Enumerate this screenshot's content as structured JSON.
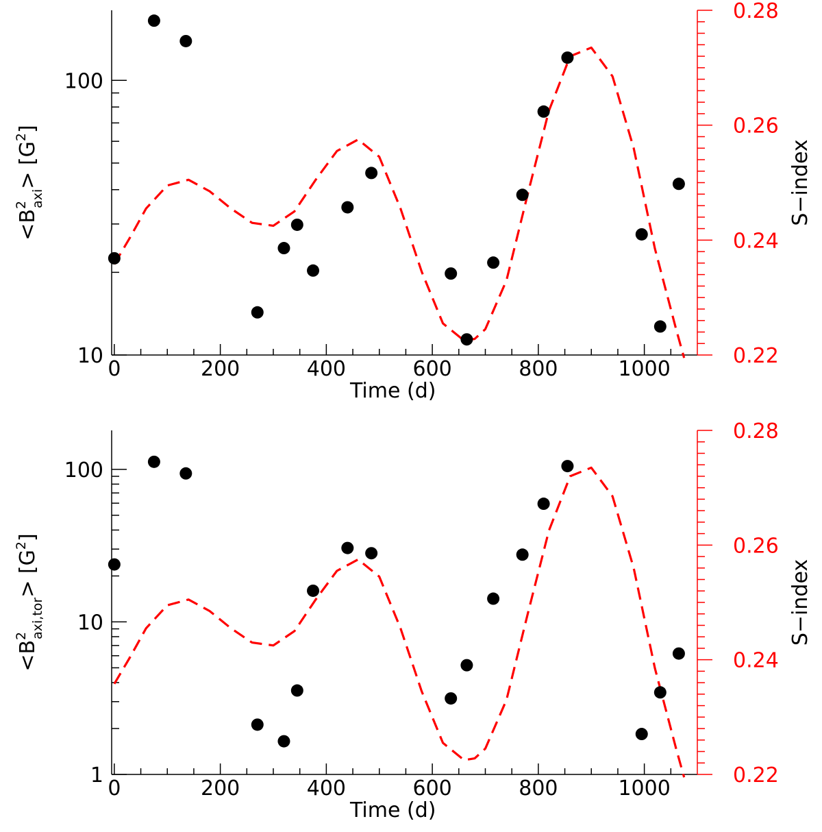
{
  "colors": {
    "points": "#000000",
    "sindex_curve": "#ff0000",
    "left_axis": "#000000",
    "right_axis": "#ff0000"
  },
  "chart_data": [
    {
      "type": "scatter",
      "panel": "top",
      "xlabel": "Time (d)",
      "ylabel": {
        "pre": "<B",
        "sup": "2",
        "sub": "axi",
        "post": "> [G",
        "sup2": "2",
        "post2": "]"
      },
      "y2label": "S−index",
      "xlim": [
        -5,
        1100
      ],
      "ylim": [
        10,
        180
      ],
      "yscale": "log",
      "y2lim": [
        0.22,
        0.28
      ],
      "x_major_ticks": [
        0,
        200,
        400,
        600,
        800,
        1000
      ],
      "x_tick_labels": [
        "0",
        "200",
        "400",
        "600",
        "800",
        "1000"
      ],
      "x_minor_ticks": [
        50,
        100,
        150,
        250,
        300,
        350,
        450,
        500,
        550,
        650,
        700,
        750,
        850,
        900,
        950,
        1050
      ],
      "y_major_ticks": [
        10,
        100
      ],
      "y_tick_labels": [
        "10",
        "100"
      ],
      "y_minor_ticks": [
        20,
        30,
        40,
        50,
        60,
        70,
        80,
        90
      ],
      "y2_major_ticks": [
        0.22,
        0.24,
        0.26,
        0.28
      ],
      "y2_tick_labels": [
        "0.22",
        "0.24",
        "0.26",
        "0.28"
      ],
      "y2_minor_step": 0.002,
      "series": [
        {
          "name": "<B²axi>",
          "kind": "points",
          "x": [
            0,
            75,
            135,
            270,
            320,
            345,
            375,
            440,
            485,
            635,
            665,
            715,
            770,
            810,
            855,
            995,
            1030,
            1065
          ],
          "y": [
            22.5,
            165,
            139,
            14.3,
            24.5,
            29.8,
            20.3,
            34.5,
            46,
            19.8,
            11.4,
            21.7,
            38.3,
            77,
            121,
            27.5,
            12.7,
            42
          ]
        },
        {
          "name": "S-index",
          "kind": "dashed-line",
          "x": [
            0,
            30,
            60,
            100,
            140,
            180,
            220,
            260,
            300,
            340,
            380,
            420,
            460,
            500,
            540,
            580,
            620,
            660,
            680,
            700,
            740,
            780,
            820,
            860,
            900,
            940,
            980,
            1020,
            1060,
            1075
          ],
          "y": [
            0.2358,
            0.2405,
            0.2455,
            0.2495,
            0.2505,
            0.2485,
            0.2455,
            0.243,
            0.2425,
            0.245,
            0.2505,
            0.2555,
            0.2575,
            0.2545,
            0.2455,
            0.2345,
            0.2255,
            0.2225,
            0.2228,
            0.2245,
            0.233,
            0.248,
            0.2625,
            0.272,
            0.2735,
            0.2685,
            0.256,
            0.2385,
            0.2245,
            0.2195
          ]
        }
      ]
    },
    {
      "type": "scatter",
      "panel": "bottom",
      "xlabel": "Time (d)",
      "ylabel": {
        "pre": "<B",
        "sup": "2",
        "sub": "axi,tor",
        "post": "> [G",
        "sup2": "2",
        "post2": "]"
      },
      "y2label": "S−index",
      "xlim": [
        -5,
        1100
      ],
      "ylim": [
        1,
        180
      ],
      "yscale": "log",
      "y2lim": [
        0.22,
        0.28
      ],
      "x_major_ticks": [
        0,
        200,
        400,
        600,
        800,
        1000
      ],
      "x_tick_labels": [
        "0",
        "200",
        "400",
        "600",
        "800",
        "1000"
      ],
      "x_minor_ticks": [
        50,
        100,
        150,
        250,
        300,
        350,
        450,
        500,
        550,
        650,
        700,
        750,
        850,
        900,
        950,
        1050
      ],
      "y_major_ticks": [
        1,
        10,
        100
      ],
      "y_tick_labels": [
        "1",
        "10",
        "100"
      ],
      "y_minor_ticks": [
        2,
        3,
        4,
        5,
        6,
        7,
        8,
        9,
        20,
        30,
        40,
        50,
        60,
        70,
        80,
        90
      ],
      "y2_major_ticks": [
        0.22,
        0.24,
        0.26,
        0.28
      ],
      "y2_tick_labels": [
        "0.22",
        "0.24",
        "0.26",
        "0.28"
      ],
      "y2_minor_step": 0.002,
      "series": [
        {
          "name": "<B²axi,tor>",
          "kind": "points",
          "x": [
            0,
            75,
            135,
            270,
            320,
            345,
            375,
            440,
            485,
            635,
            665,
            715,
            770,
            810,
            855,
            995,
            1030,
            1065
          ],
          "y": [
            23.8,
            112,
            94,
            2.12,
            1.65,
            3.55,
            16,
            30.5,
            28.2,
            3.15,
            5.2,
            14.2,
            27.6,
            59.5,
            105,
            1.84,
            3.45,
            6.2
          ]
        },
        {
          "name": "S-index",
          "kind": "dashed-line",
          "x": [
            0,
            30,
            60,
            100,
            140,
            180,
            220,
            260,
            300,
            340,
            380,
            420,
            460,
            500,
            540,
            580,
            620,
            660,
            680,
            700,
            740,
            780,
            820,
            860,
            900,
            940,
            980,
            1020,
            1060,
            1075
          ],
          "y": [
            0.2358,
            0.2405,
            0.2455,
            0.2495,
            0.2505,
            0.2485,
            0.2455,
            0.243,
            0.2425,
            0.245,
            0.2505,
            0.2555,
            0.2575,
            0.2545,
            0.2455,
            0.2345,
            0.2255,
            0.2225,
            0.2228,
            0.2245,
            0.233,
            0.248,
            0.2625,
            0.272,
            0.2735,
            0.2685,
            0.256,
            0.2385,
            0.2245,
            0.2195
          ]
        }
      ]
    }
  ]
}
